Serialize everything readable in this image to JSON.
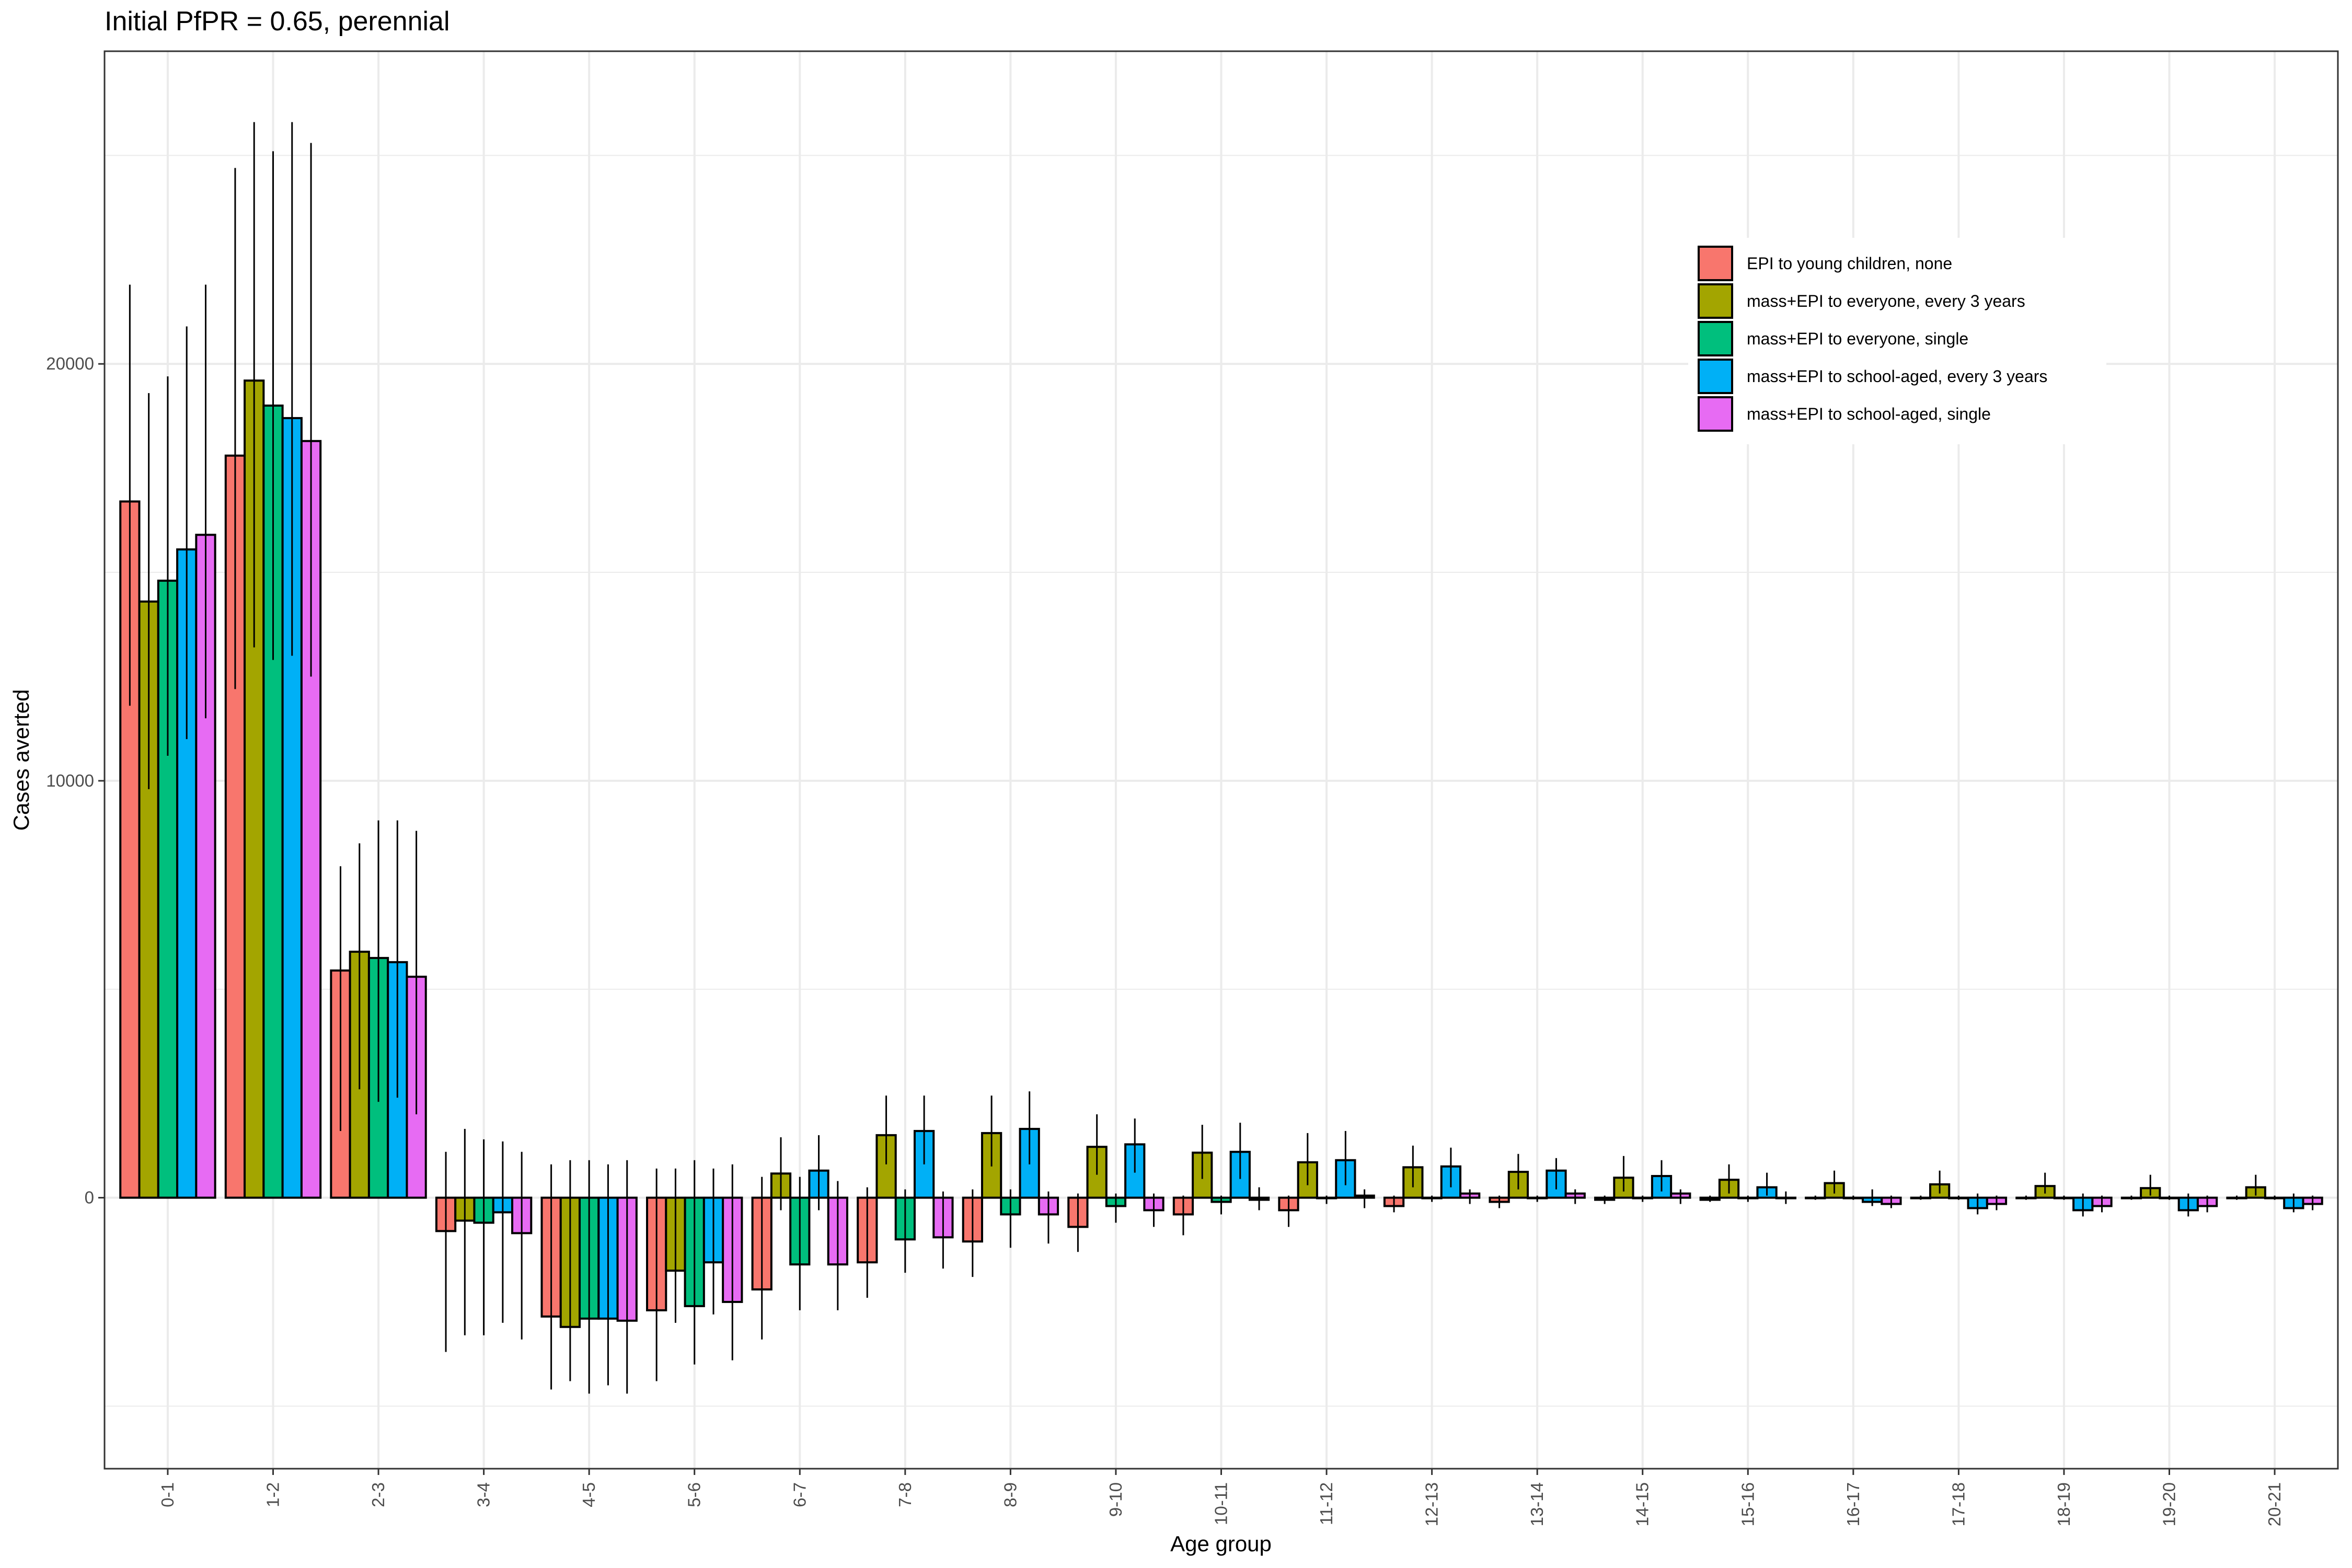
{
  "chart_data": {
    "type": "bar",
    "title": "Initial PfPR = 0.65, perennial",
    "xlabel": "Age group",
    "ylabel": "Cases averted",
    "ylim": [
      -6500,
      27500
    ],
    "yticks": [
      0,
      10000,
      20000
    ],
    "grid": true,
    "legend_position": "top-right",
    "categories": [
      "0-1",
      "1-2",
      "2-3",
      "3-4",
      "4-5",
      "5-6",
      "6-7",
      "7-8",
      "8-9",
      "9-10",
      "10-11",
      "11-12",
      "12-13",
      "13-14",
      "14-15",
      "15-16",
      "16-17",
      "17-18",
      "18-19",
      "19-20",
      "20-21"
    ],
    "series": [
      {
        "name": "EPI to young children, none",
        "color": "#F8766D",
        "values": [
          16700,
          17800,
          5450,
          -800,
          -2850,
          -2700,
          -2200,
          -1550,
          -1050,
          -700,
          -400,
          -300,
          -200,
          -100,
          -50,
          -50,
          0,
          0,
          0,
          0,
          0
        ],
        "err_low": [
          11800,
          12200,
          1600,
          -3700,
          -4600,
          -4400,
          -3400,
          -2400,
          -1900,
          -1300,
          -900,
          -700,
          -350,
          -250,
          -150,
          -100,
          -50,
          -50,
          -50,
          -50,
          -50
        ],
        "err_high": [
          21900,
          24700,
          7950,
          1100,
          800,
          700,
          500,
          250,
          200,
          100,
          50,
          50,
          50,
          50,
          50,
          50,
          50,
          50,
          50,
          50,
          50
        ]
      },
      {
        "name": "mass+EPI to everyone, every 3 years",
        "color": "#A3A500",
        "values": [
          14300,
          19600,
          5900,
          -550,
          -3100,
          -1750,
          580,
          1500,
          1550,
          1220,
          1080,
          850,
          730,
          620,
          480,
          430,
          350,
          320,
          280,
          230,
          250
        ],
        "err_low": [
          9800,
          13200,
          2600,
          -3300,
          -4400,
          -3000,
          -300,
          800,
          750,
          550,
          450,
          300,
          250,
          200,
          150,
          100,
          100,
          100,
          100,
          50,
          50
        ],
        "err_high": [
          19300,
          25800,
          8500,
          1650,
          900,
          700,
          1450,
          2450,
          2450,
          2000,
          1750,
          1550,
          1250,
          1050,
          1000,
          800,
          650,
          650,
          600,
          550,
          550
        ]
      },
      {
        "name": "mass+EPI to everyone, single",
        "color": "#00BF7D",
        "values": [
          14800,
          19000,
          5750,
          -600,
          -2900,
          -2600,
          -1600,
          -1000,
          -400,
          -200,
          -100,
          0,
          0,
          0,
          0,
          0,
          0,
          0,
          0,
          0,
          0
        ],
        "err_low": [
          10600,
          12900,
          2300,
          -3300,
          -4700,
          -4000,
          -2700,
          -1800,
          -1200,
          -600,
          -400,
          -150,
          -100,
          -100,
          -100,
          -100,
          -50,
          -50,
          -50,
          -50,
          -50
        ],
        "err_high": [
          19700,
          25100,
          9050,
          1400,
          900,
          900,
          500,
          200,
          200,
          100,
          50,
          50,
          50,
          50,
          50,
          50,
          50,
          50,
          50,
          50,
          50
        ]
      },
      {
        "name": "mass+EPI to school-aged, every 3 years",
        "color": "#00B0F6",
        "values": [
          15550,
          18700,
          5650,
          -350,
          -2900,
          -1550,
          650,
          1600,
          1650,
          1280,
          1100,
          900,
          750,
          650,
          520,
          250,
          -100,
          -250,
          -300,
          -300,
          -250
        ],
        "err_low": [
          11000,
          13000,
          2400,
          -3000,
          -4500,
          -2800,
          -300,
          800,
          800,
          600,
          450,
          300,
          250,
          200,
          150,
          50,
          -200,
          -400,
          -450,
          -450,
          -350
        ],
        "err_high": [
          20900,
          25800,
          9050,
          1350,
          800,
          700,
          1500,
          2450,
          2550,
          1900,
          1800,
          1600,
          1200,
          950,
          900,
          600,
          200,
          100,
          100,
          100,
          100
        ]
      },
      {
        "name": "mass+EPI to school-aged, single",
        "color": "#E76BF3",
        "values": [
          15900,
          18150,
          5300,
          -850,
          -2950,
          -2500,
          -1600,
          -950,
          -400,
          -300,
          -50,
          50,
          100,
          100,
          100,
          0,
          -150,
          -150,
          -200,
          -200,
          -150
        ],
        "err_low": [
          11500,
          12500,
          2000,
          -3400,
          -4700,
          -3900,
          -2700,
          -1700,
          -1100,
          -700,
          -300,
          -250,
          -150,
          -150,
          -150,
          -150,
          -250,
          -300,
          -350,
          -350,
          -300
        ],
        "err_high": [
          21900,
          25300,
          8800,
          1100,
          900,
          800,
          400,
          150,
          150,
          100,
          250,
          200,
          200,
          200,
          200,
          150,
          50,
          50,
          50,
          50,
          50
        ]
      }
    ]
  }
}
